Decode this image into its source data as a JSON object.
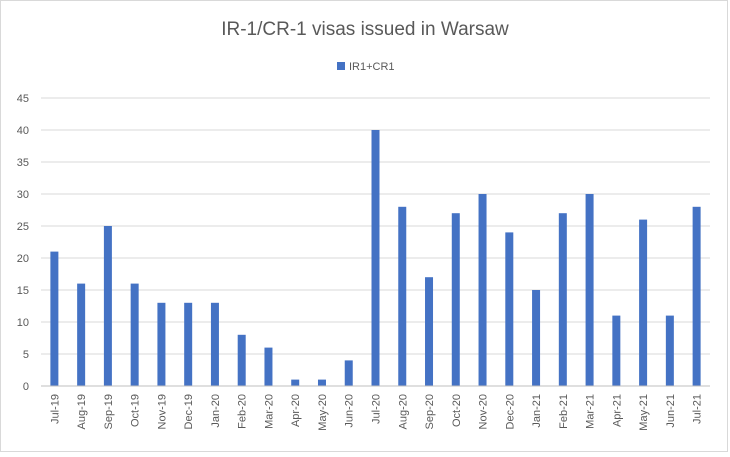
{
  "chart_data": {
    "type": "bar",
    "title": "IR-1/CR-1 visas issued in Warsaw",
    "xlabel": "",
    "ylabel": "",
    "ylim": [
      0,
      45
    ],
    "yticks": [
      "0",
      "5",
      "10",
      "15",
      "20",
      "25",
      "30",
      "35",
      "40",
      "45"
    ],
    "grid": true,
    "legend": "top-center",
    "categories": [
      "Jul-19",
      "Aug-19",
      "Sep-19",
      "Oct-19",
      "Nov-19",
      "Dec-19",
      "Jan-20",
      "Feb-20",
      "Mar-20",
      "Apr-20",
      "May-20",
      "Jun-20",
      "Jul-20",
      "Aug-20",
      "Sep-20",
      "Oct-20",
      "Nov-20",
      "Dec-20",
      "Jan-21",
      "Feb-21",
      "Mar-21",
      "Apr-21",
      "May-21",
      "Jun-21",
      "Jul-21"
    ],
    "series": [
      {
        "name": "IR1+CR1",
        "color": "#4472c4",
        "values": [
          21,
          16,
          25,
          16,
          13,
          13,
          13,
          8,
          6,
          1,
          1,
          4,
          40,
          28,
          17,
          27,
          30,
          24,
          15,
          27,
          30,
          11,
          26,
          11,
          28
        ]
      }
    ]
  }
}
